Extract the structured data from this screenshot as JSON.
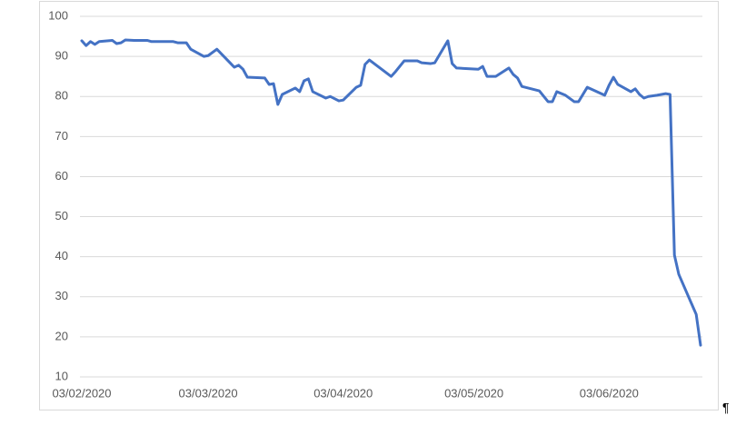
{
  "chart_data": {
    "type": "line",
    "x": [
      "03/02/2020",
      "04/02/2020",
      "05/02/2020",
      "06/02/2020",
      "07/02/2020",
      "10/02/2020",
      "11/02/2020",
      "12/02/2020",
      "13/02/2020",
      "15/02/2020",
      "18/02/2020",
      "19/02/2020",
      "24/02/2020",
      "25/02/2020",
      "27/02/2020",
      "28/02/2020",
      "02/03/2020",
      "03/03/2020",
      "05/03/2020",
      "09/03/2020",
      "10/03/2020",
      "11/03/2020",
      "12/03/2020",
      "16/03/2020",
      "17/03/2020",
      "18/03/2020",
      "19/03/2020",
      "20/03/2020",
      "23/03/2020",
      "24/03/2020",
      "25/03/2020",
      "26/03/2020",
      "27/03/2020",
      "30/03/2020",
      "31/03/2020",
      "02/04/2020",
      "03/04/2020",
      "06/04/2020",
      "07/04/2020",
      "08/04/2020",
      "09/04/2020",
      "14/04/2020",
      "15/04/2020",
      "17/04/2020",
      "20/04/2020",
      "21/04/2020",
      "23/04/2020",
      "24/04/2020",
      "27/04/2020",
      "28/04/2020",
      "29/04/2020",
      "04/05/2020",
      "05/05/2020",
      "06/05/2020",
      "08/05/2020",
      "11/05/2020",
      "12/05/2020",
      "13/05/2020",
      "14/05/2020",
      "18/05/2020",
      "20/05/2020",
      "21/05/2020",
      "22/05/2020",
      "24/05/2020",
      "26/05/2020",
      "27/05/2020",
      "29/05/2020",
      "02/06/2020",
      "03/06/2020",
      "04/06/2020",
      "05/06/2020",
      "08/06/2020",
      "09/06/2020",
      "10/06/2020",
      "11/06/2020",
      "12/06/2020",
      "14/06/2020",
      "16/06/2020",
      "17/06/2020",
      "18/06/2020",
      "19/06/2020",
      "23/06/2020",
      "24/06/2020"
    ],
    "series": [
      {
        "color": "#4472c4",
        "values": [
          93.9,
          92.7,
          93.7,
          93.0,
          93.7,
          94.0,
          93.2,
          93.4,
          94.1,
          94.0,
          94.0,
          93.7,
          93.7,
          93.4,
          93.4,
          91.8,
          90.0,
          90.2,
          91.8,
          87.3,
          87.8,
          86.8,
          84.8,
          84.6,
          83.0,
          83.2,
          78.0,
          80.5,
          82.1,
          81.2,
          83.9,
          84.4,
          81.2,
          79.6,
          80.0,
          78.9,
          79.1,
          82.3,
          82.8,
          88.0,
          89.1,
          85.0,
          86.2,
          88.9,
          88.9,
          88.4,
          88.2,
          88.4,
          93.9,
          88.2,
          87.1,
          86.8,
          87.5,
          85.0,
          85.0,
          87.1,
          85.5,
          84.6,
          82.5,
          81.4,
          78.7,
          78.7,
          81.2,
          80.3,
          78.7,
          78.7,
          82.3,
          80.3,
          82.8,
          84.8,
          83.0,
          81.2,
          81.9,
          80.5,
          79.6,
          80.0,
          80.3,
          80.7,
          80.5,
          40.4,
          35.6,
          25.6,
          17.9
        ]
      }
    ],
    "xlim": [
      "03/02/2020",
      "24/06/2020"
    ],
    "xticks": [
      "03/02/2020",
      "03/03/2020",
      "03/04/2020",
      "03/05/2020",
      "03/06/2020"
    ],
    "ylim": [
      10,
      100
    ],
    "yticks": [
      10,
      20,
      30,
      40,
      50,
      60,
      70,
      80,
      90,
      100
    ],
    "grid": true
  },
  "paragraph_mark": "¶"
}
